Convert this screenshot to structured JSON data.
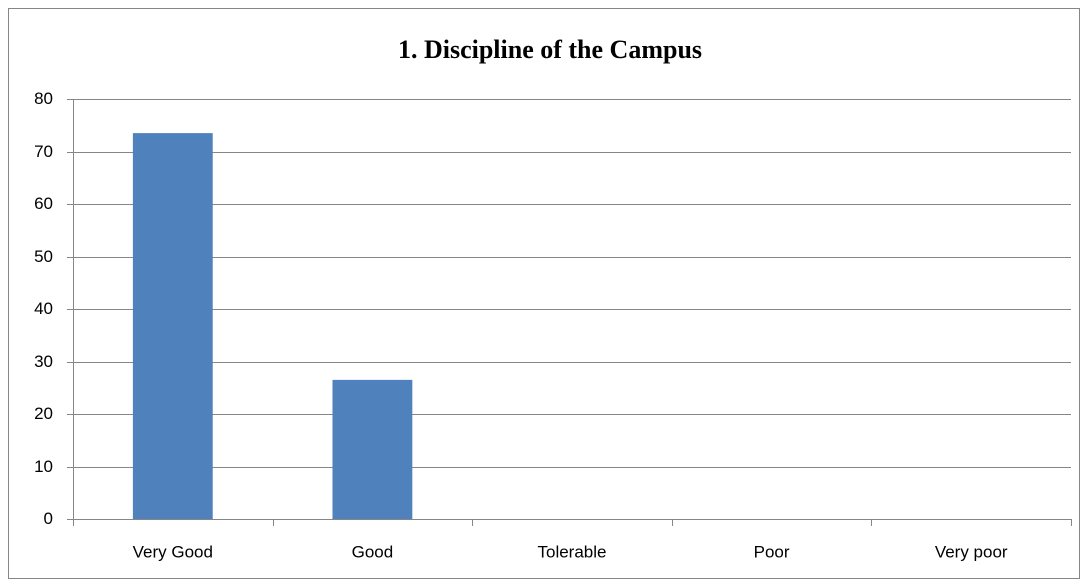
{
  "chart_data": {
    "type": "bar",
    "title": "1. Discipline of the Campus",
    "categories": [
      "Very Good",
      "Good",
      "Tolerable",
      "Poor",
      "Very poor"
    ],
    "values": [
      73.5,
      26.5,
      0,
      0,
      0
    ],
    "color": "#4f81bd",
    "ylim": [
      0,
      80
    ],
    "yticks": [
      0,
      10,
      20,
      30,
      40,
      50,
      60,
      70,
      80
    ],
    "grid": true
  }
}
